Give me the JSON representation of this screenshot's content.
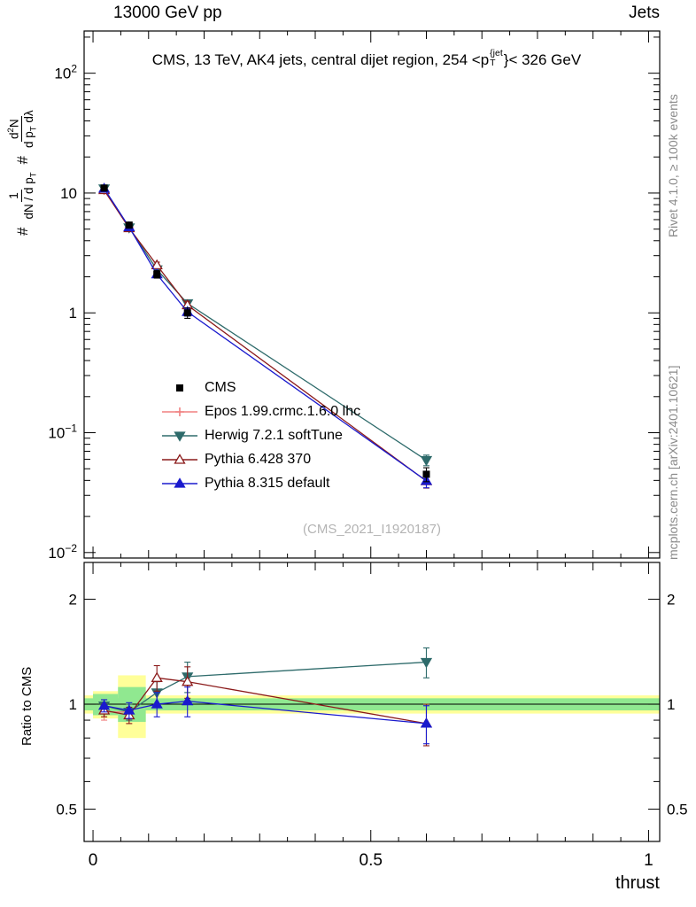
{
  "header": {
    "left": "13000 GeV pp",
    "right": "Jets"
  },
  "title": {
    "pre": "CMS, 13 TeV, AK4 jets, central dijet region, 254 <p",
    "sup": "{jet",
    "sub": "T",
    "post": "}< 326 GeV"
  },
  "ylabel": {
    "hash1": "#",
    "f1_num": "1",
    "f1_den_pre": "dN / d p",
    "f1_den_sub": "T",
    "hash2": "#",
    "f2_num_pre": "d",
    "f2_num_sup": "2",
    "f2_num_post": "N",
    "f2_den_pre": "d p",
    "f2_den_sub": "T",
    "f2_den_post": " dλ"
  },
  "ratio_ylabel": "Ratio to CMS",
  "xaxis_title": "thrust",
  "watermark": "(CMS_2021_I1920187)",
  "credits": {
    "rivet": "Rivet 4.1.0, ≥ 100k events",
    "mcplots": "mcplots.cern.ch [arXiv:2401.10621]"
  },
  "colors": {
    "credit_gray": "#8a8a8a",
    "watermark_gray": "#b4b4b4"
  },
  "chart_data": [
    {
      "type": "line",
      "panel": "main",
      "yscale": "log",
      "xlim": [
        -0.016,
        1.02
      ],
      "ylim": [
        0.009,
        225
      ],
      "x": [
        0.02,
        0.065,
        0.115,
        0.17,
        0.6
      ],
      "xticks": [
        {
          "v": 0,
          "label": "0"
        },
        {
          "v": 0.5,
          "label": "0.5"
        },
        {
          "v": 1,
          "label": "1"
        }
      ],
      "yticks": [
        {
          "v": 100,
          "base": "10",
          "exp": "2"
        },
        {
          "v": 10,
          "label": "10"
        },
        {
          "v": 1,
          "label": "1"
        },
        {
          "v": 0.1,
          "base": "10",
          "exp": "−1"
        },
        {
          "v": 0.01,
          "base": "10",
          "exp": "−2"
        }
      ],
      "series": [
        {
          "name": "CMS",
          "color": "#000000",
          "marker": "square",
          "fill": true,
          "line": false,
          "values": [
            11.0,
            5.4,
            2.1,
            1.0,
            0.045
          ],
          "errs": [
            0.6,
            0.3,
            0.15,
            0.1,
            0.006
          ]
        },
        {
          "name": "Epos 1.99.crmc.1.6.0 lhc",
          "color": "#f08080",
          "marker": "cross",
          "fill": false,
          "line": true,
          "values": [
            10.5,
            5.15,
            null,
            null,
            null
          ],
          "errs": [
            0.5,
            0.3,
            null,
            null,
            null
          ]
        },
        {
          "name": "Herwig 7.2.1 softTune",
          "color": "#2e6b6b",
          "marker": "triangle-down",
          "fill": true,
          "line": true,
          "values": [
            10.9,
            5.15,
            2.3,
            1.2,
            0.059
          ],
          "errs": [
            0.4,
            0.25,
            0.12,
            0.08,
            0.006
          ]
        },
        {
          "name": "Pythia 6.428 370",
          "color": "#8b1a1a",
          "marker": "triangle-up",
          "fill": false,
          "line": true,
          "values": [
            10.6,
            5.1,
            2.5,
            1.16,
            0.0395
          ],
          "errs": [
            0.4,
            0.25,
            0.15,
            0.09,
            0.005
          ]
        },
        {
          "name": "Pythia 8.315 default",
          "color": "#1a1acd",
          "marker": "triangle-up",
          "fill": true,
          "line": true,
          "values": [
            10.9,
            5.2,
            2.1,
            1.02,
            0.0397
          ],
          "errs": [
            0.4,
            0.25,
            0.12,
            0.08,
            0.005
          ]
        }
      ]
    },
    {
      "type": "ratio",
      "panel": "ratio",
      "yscale": "log",
      "xlim": [
        -0.016,
        1.02
      ],
      "ylim": [
        0.404,
        2.55
      ],
      "x": [
        0.02,
        0.065,
        0.115,
        0.17,
        0.6
      ],
      "yticks": [
        {
          "v": 2,
          "label": "2"
        },
        {
          "v": 1,
          "label": "1"
        },
        {
          "v": 0.5,
          "label": "0.5"
        }
      ],
      "ref_line": 1,
      "band_colors": {
        "yellow": "#ffff99",
        "green": "#90e890"
      },
      "bands": {
        "full": {
          "yellow": [
            0.94,
            1.06
          ],
          "green": [
            0.96,
            1.04
          ]
        },
        "bins": [
          {
            "x0": 0.0,
            "x1": 0.045,
            "yellow": [
              0.91,
              1.09
            ],
            "green": [
              0.93,
              1.07
            ]
          },
          {
            "x0": 0.045,
            "x1": 0.095,
            "yellow": [
              0.8,
              1.21
            ],
            "green": [
              0.89,
              1.12
            ]
          }
        ]
      },
      "series": [
        {
          "name": "Epos 1.99.crmc.1.6.0 lhc",
          "color": "#f08080",
          "marker": "cross",
          "fill": false,
          "line": true,
          "values": [
            0.95,
            0.95,
            null,
            null,
            null
          ],
          "errs": [
            0.05,
            0.05,
            null,
            null,
            null
          ]
        },
        {
          "name": "Herwig 7.2.1 softTune",
          "color": "#2e6b6b",
          "marker": "triangle-down",
          "fill": true,
          "line": true,
          "values": [
            0.99,
            0.95,
            1.08,
            1.2,
            1.32
          ],
          "errs": [
            0.04,
            0.05,
            0.08,
            0.12,
            0.13
          ]
        },
        {
          "name": "Pythia 6.428 370",
          "color": "#8b1a1a",
          "marker": "triangle-up",
          "fill": false,
          "line": true,
          "values": [
            0.96,
            0.93,
            1.19,
            1.16,
            0.88
          ],
          "errs": [
            0.04,
            0.05,
            0.1,
            0.12,
            0.12
          ]
        },
        {
          "name": "Pythia 8.315 default",
          "color": "#1a1acd",
          "marker": "triangle-up",
          "fill": true,
          "line": true,
          "values": [
            0.99,
            0.96,
            1.0,
            1.02,
            0.88
          ],
          "errs": [
            0.04,
            0.05,
            0.08,
            0.1,
            0.11
          ]
        }
      ]
    }
  ]
}
